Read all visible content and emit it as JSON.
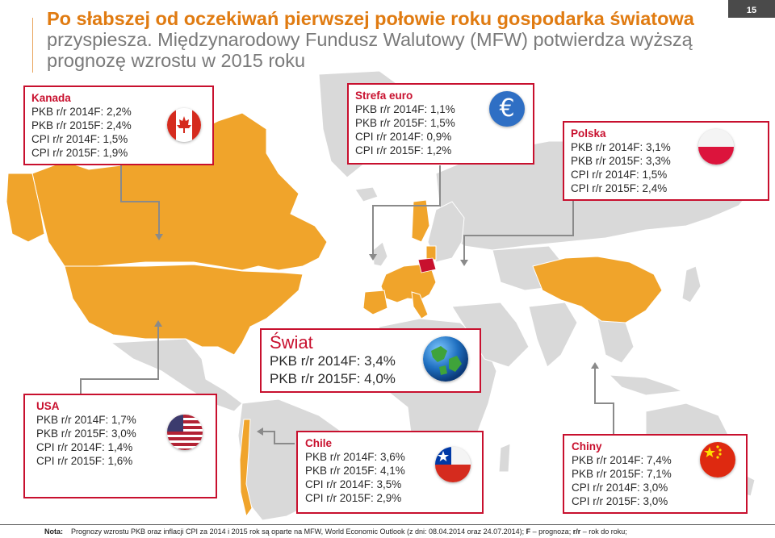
{
  "page_number": "15",
  "title": {
    "line1": "Po słabszej od oczekiwań pierwszej połowie roku gospodarka światowa",
    "line2": "przyspiesza. Międzynarodowy Fundusz Walutowy (MFW) potwierdza wyższą",
    "line3": "prognozę wzrostu w 2015 roku"
  },
  "colors": {
    "highlight_country": "#f0a42b",
    "land": "#d9d9d9",
    "border": "#c8102e",
    "title": "#e07b11"
  },
  "boxes": {
    "kanada": {
      "name": "Kanada",
      "flag": "canada-flag-icon",
      "lines": [
        "PKB r/r 2014F: 2,2%",
        "PKB r/r 2015F: 2,4%",
        "CPI r/r 2014F: 1,5%",
        "CPI r/r 2015F: 1,9%"
      ]
    },
    "strefa": {
      "name": "Strefa euro",
      "flag": "euro-icon",
      "flag_symbol": "€",
      "lines": [
        "PKB r/r 2014F: 1,1%",
        "PKB r/r 2015F: 1,5%",
        "CPI r/r 2014F: 0,9%",
        "CPI r/r 2015F: 1,2%"
      ]
    },
    "polska": {
      "name": "Polska",
      "flag": "poland-flag-icon",
      "lines": [
        "PKB r/r 2014F: 3,1%",
        "PKB r/r 2015F: 3,3%",
        "CPI r/r 2014F: 1,5%",
        "CPI r/r 2015F: 2,4%"
      ]
    },
    "swiat": {
      "name": "Świat",
      "flag": "globe-icon",
      "lines": [
        "PKB r/r 2014F: 3,4%",
        "PKB r/r 2015F: 4,0%"
      ]
    },
    "usa": {
      "name": "USA",
      "flag": "usa-flag-icon",
      "lines": [
        "PKB r/r 2014F: 1,7%",
        "PKB r/r 2015F: 3,0%",
        "CPI r/r 2014F: 1,4%",
        "CPI r/r 2015F: 1,6%"
      ]
    },
    "chile": {
      "name": "Chile",
      "flag": "chile-flag-icon",
      "lines": [
        "PKB r/r 2014F: 3,6%",
        "PKB r/r 2015F: 4,1%",
        "CPI r/r 2014F: 3,5%",
        "CPI r/r 2015F: 2,9%"
      ]
    },
    "chiny": {
      "name": "Chiny",
      "flag": "china-flag-icon",
      "lines": [
        "PKB r/r 2014F: 7,4%",
        "PKB r/r 2015F: 7,1%",
        "CPI r/r 2014F: 3,0%",
        "CPI r/r 2015F: 3,0%"
      ]
    }
  },
  "note": {
    "label": "Nota:",
    "text_main": "Prognozy wzrostu PKB oraz inflacji CPI za 2014 i 2015 rok są oparte na MFW, World Economic Outlook (z dni: 08.04.2014 oraz 24.07.2014);",
    "f_label": "F",
    "f_text": "– prognoza;",
    "rr_label": "r/r",
    "rr_text": "– rok do roku;"
  }
}
